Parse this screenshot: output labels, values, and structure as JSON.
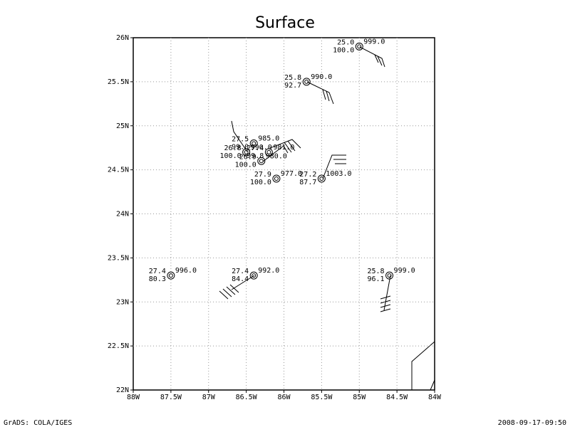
{
  "title": "Surface",
  "footer": {
    "left": "GrADS: COLA/IGES",
    "right": "2008-09-17-09:50"
  },
  "xlim": [
    88,
    84
  ],
  "ylim": [
    22,
    26
  ],
  "xticks": [
    {
      "value": 88,
      "label": "88W"
    },
    {
      "value": 87.5,
      "label": "87.5W"
    },
    {
      "value": 87,
      "label": "87W"
    },
    {
      "value": 86.5,
      "label": "86.5W"
    },
    {
      "value": 86,
      "label": "86W"
    },
    {
      "value": 85.5,
      "label": "85.5W"
    },
    {
      "value": 85,
      "label": "85W"
    },
    {
      "value": 84.5,
      "label": "84.5W"
    },
    {
      "value": 84,
      "label": "84W"
    }
  ],
  "yticks": [
    {
      "value": 22,
      "label": "22N"
    },
    {
      "value": 22.5,
      "label": "22.5N"
    },
    {
      "value": 23,
      "label": "23N"
    },
    {
      "value": 23.5,
      "label": "23.5N"
    },
    {
      "value": 24,
      "label": "24N"
    },
    {
      "value": 24.5,
      "label": "24.5N"
    },
    {
      "value": 25,
      "label": "25N"
    },
    {
      "value": 25.5,
      "label": "25.5N"
    },
    {
      "value": 26,
      "label": "26N"
    }
  ],
  "stations": [
    {
      "lon": 85.0,
      "lat": 25.9,
      "temp": "25.0",
      "rh": "100.0",
      "pres": "999.0"
    },
    {
      "lon": 85.7,
      "lat": 25.5,
      "temp": "25.8",
      "rh": "92.7",
      "pres": "990.0"
    },
    {
      "lon": 85.5,
      "lat": 24.4,
      "temp": "27.2",
      "rh": "87.7",
      "pres": "1003.0"
    },
    {
      "lon": 87.5,
      "lat": 23.3,
      "temp": "27.4",
      "rh": "80.3",
      "pres": "996.0"
    },
    {
      "lon": 86.4,
      "lat": 23.3,
      "temp": "27.4",
      "rh": "84.4",
      "pres": "992.0"
    },
    {
      "lon": 84.6,
      "lat": 23.3,
      "temp": "25.8",
      "rh": "96.1",
      "pres": "999.0"
    },
    {
      "lon": 86.1,
      "lat": 24.4,
      "temp": "27.9",
      "rh": "100.0",
      "pres": "977.0"
    },
    {
      "lon": 86.5,
      "lat": 24.7,
      "temp": "26.8",
      "rh": "100.0",
      "pres": "990.0"
    },
    {
      "lon": 86.4,
      "lat": 24.8,
      "temp": "27.5",
      "rh": "99.0",
      "pres": "985.0"
    },
    {
      "lon": 86.2,
      "lat": 24.7,
      "temp": "27.4",
      "rh": "99.8",
      "pres": "981.0"
    },
    {
      "lon": 86.3,
      "lat": 24.6,
      "temp": "26.9",
      "rh": "100.0",
      "pres": "980.0"
    }
  ]
}
